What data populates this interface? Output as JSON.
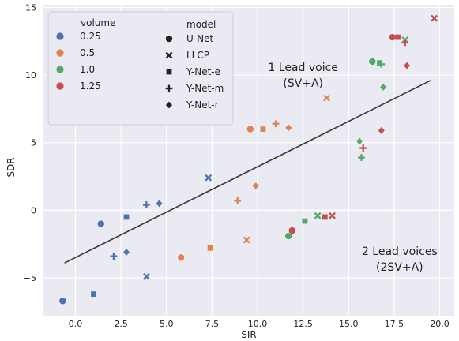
{
  "chart_data": {
    "type": "scatter",
    "title": "",
    "xlabel": "SIR",
    "ylabel": "SDR",
    "xlim": [
      -1.8,
      20.8
    ],
    "ylim": [
      -7.8,
      15.2
    ],
    "xticks": [
      0.0,
      2.5,
      5.0,
      7.5,
      10.0,
      12.5,
      15.0,
      17.5,
      20.0
    ],
    "xtick_labels": [
      "0.0",
      "2.5",
      "5.0",
      "7.5",
      "10.0",
      "12.5",
      "15.0",
      "17.5",
      "20.0"
    ],
    "yticks": [
      -5,
      0,
      5,
      10,
      15
    ],
    "ytick_labels": [
      "−5",
      "0",
      "5",
      "10",
      "15"
    ],
    "grid": true,
    "background": "#eaeaf2",
    "legend": {
      "placement": "top-left",
      "hue_title": "volume",
      "hue_entries": [
        {
          "label": "0.25",
          "color": "#4c72b0"
        },
        {
          "label": "0.5",
          "color": "#dd8452"
        },
        {
          "label": "1.0",
          "color": "#55a868"
        },
        {
          "label": "1.25",
          "color": "#c44e52"
        }
      ],
      "style_title": "model",
      "style_entries": [
        {
          "label": "U-Net",
          "marker": "circle"
        },
        {
          "label": "LLCP",
          "marker": "x"
        },
        {
          "label": "Y-Net-e",
          "marker": "square"
        },
        {
          "label": "Y-Net-m",
          "marker": "plus"
        },
        {
          "label": "Y-Net-r",
          "marker": "diamond"
        }
      ]
    },
    "annotations": [
      {
        "lines": [
          "1 Lead voice",
          "(SV+A)"
        ],
        "x": 12.5,
        "y": 10.3
      },
      {
        "lines": [
          "2 Lead voices",
          "(2SV+A)"
        ],
        "x": 17.8,
        "y": -3.3
      }
    ],
    "trend_line": {
      "x": [
        -0.6,
        19.5
      ],
      "y": [
        -3.9,
        9.6
      ],
      "color": "#3a3a3a"
    },
    "points": [
      {
        "x": -0.7,
        "y": -6.7,
        "volume": "0.25",
        "model": "U-Net"
      },
      {
        "x": 1.4,
        "y": -1.0,
        "volume": "0.25",
        "model": "U-Net"
      },
      {
        "x": 3.9,
        "y": -4.9,
        "volume": "0.25",
        "model": "LLCP"
      },
      {
        "x": 7.3,
        "y": 2.4,
        "volume": "0.25",
        "model": "LLCP"
      },
      {
        "x": 1.0,
        "y": -6.2,
        "volume": "0.25",
        "model": "Y-Net-e"
      },
      {
        "x": 2.8,
        "y": -0.5,
        "volume": "0.25",
        "model": "Y-Net-e"
      },
      {
        "x": 2.1,
        "y": -3.4,
        "volume": "0.25",
        "model": "Y-Net-m"
      },
      {
        "x": 3.9,
        "y": 0.4,
        "volume": "0.25",
        "model": "Y-Net-m"
      },
      {
        "x": 2.8,
        "y": -3.1,
        "volume": "0.25",
        "model": "Y-Net-r"
      },
      {
        "x": 4.6,
        "y": 0.5,
        "volume": "0.25",
        "model": "Y-Net-r"
      },
      {
        "x": 5.8,
        "y": -3.5,
        "volume": "0.5",
        "model": "U-Net"
      },
      {
        "x": 9.6,
        "y": 6.0,
        "volume": "0.5",
        "model": "U-Net"
      },
      {
        "x": 9.4,
        "y": -2.2,
        "volume": "0.5",
        "model": "LLCP"
      },
      {
        "x": 13.8,
        "y": 8.3,
        "volume": "0.5",
        "model": "LLCP"
      },
      {
        "x": 7.4,
        "y": -2.8,
        "volume": "0.5",
        "model": "Y-Net-e"
      },
      {
        "x": 10.3,
        "y": 6.0,
        "volume": "0.5",
        "model": "Y-Net-e"
      },
      {
        "x": 8.9,
        "y": 0.7,
        "volume": "0.5",
        "model": "Y-Net-m"
      },
      {
        "x": 11.0,
        "y": 6.4,
        "volume": "0.5",
        "model": "Y-Net-m"
      },
      {
        "x": 9.9,
        "y": 1.8,
        "volume": "0.5",
        "model": "Y-Net-r"
      },
      {
        "x": 11.7,
        "y": 6.1,
        "volume": "0.5",
        "model": "Y-Net-r"
      },
      {
        "x": 11.7,
        "y": -1.9,
        "volume": "1.0",
        "model": "U-Net"
      },
      {
        "x": 16.3,
        "y": 11.0,
        "volume": "1.0",
        "model": "U-Net"
      },
      {
        "x": 13.3,
        "y": -0.4,
        "volume": "1.0",
        "model": "LLCP"
      },
      {
        "x": 18.1,
        "y": 12.6,
        "volume": "1.0",
        "model": "LLCP"
      },
      {
        "x": 12.6,
        "y": -0.8,
        "volume": "1.0",
        "model": "Y-Net-e"
      },
      {
        "x": 16.7,
        "y": 10.9,
        "volume": "1.0",
        "model": "Y-Net-e"
      },
      {
        "x": 15.7,
        "y": 3.9,
        "volume": "1.0",
        "model": "Y-Net-m"
      },
      {
        "x": 16.8,
        "y": 10.8,
        "volume": "1.0",
        "model": "Y-Net-m"
      },
      {
        "x": 15.6,
        "y": 5.1,
        "volume": "1.0",
        "model": "Y-Net-r"
      },
      {
        "x": 16.9,
        "y": 9.1,
        "volume": "1.0",
        "model": "Y-Net-r"
      },
      {
        "x": 11.9,
        "y": -1.5,
        "volume": "1.25",
        "model": "U-Net"
      },
      {
        "x": 17.4,
        "y": 12.8,
        "volume": "1.25",
        "model": "U-Net"
      },
      {
        "x": 14.1,
        "y": -0.4,
        "volume": "1.25",
        "model": "LLCP"
      },
      {
        "x": 19.7,
        "y": 14.2,
        "volume": "1.25",
        "model": "LLCP"
      },
      {
        "x": 13.7,
        "y": -0.5,
        "volume": "1.25",
        "model": "Y-Net-e"
      },
      {
        "x": 17.7,
        "y": 12.8,
        "volume": "1.25",
        "model": "Y-Net-e"
      },
      {
        "x": 15.8,
        "y": 4.6,
        "volume": "1.25",
        "model": "Y-Net-m"
      },
      {
        "x": 18.1,
        "y": 12.4,
        "volume": "1.25",
        "model": "Y-Net-m"
      },
      {
        "x": 16.8,
        "y": 5.9,
        "volume": "1.25",
        "model": "Y-Net-r"
      },
      {
        "x": 18.2,
        "y": 10.7,
        "volume": "1.25",
        "model": "Y-Net-r"
      }
    ]
  }
}
